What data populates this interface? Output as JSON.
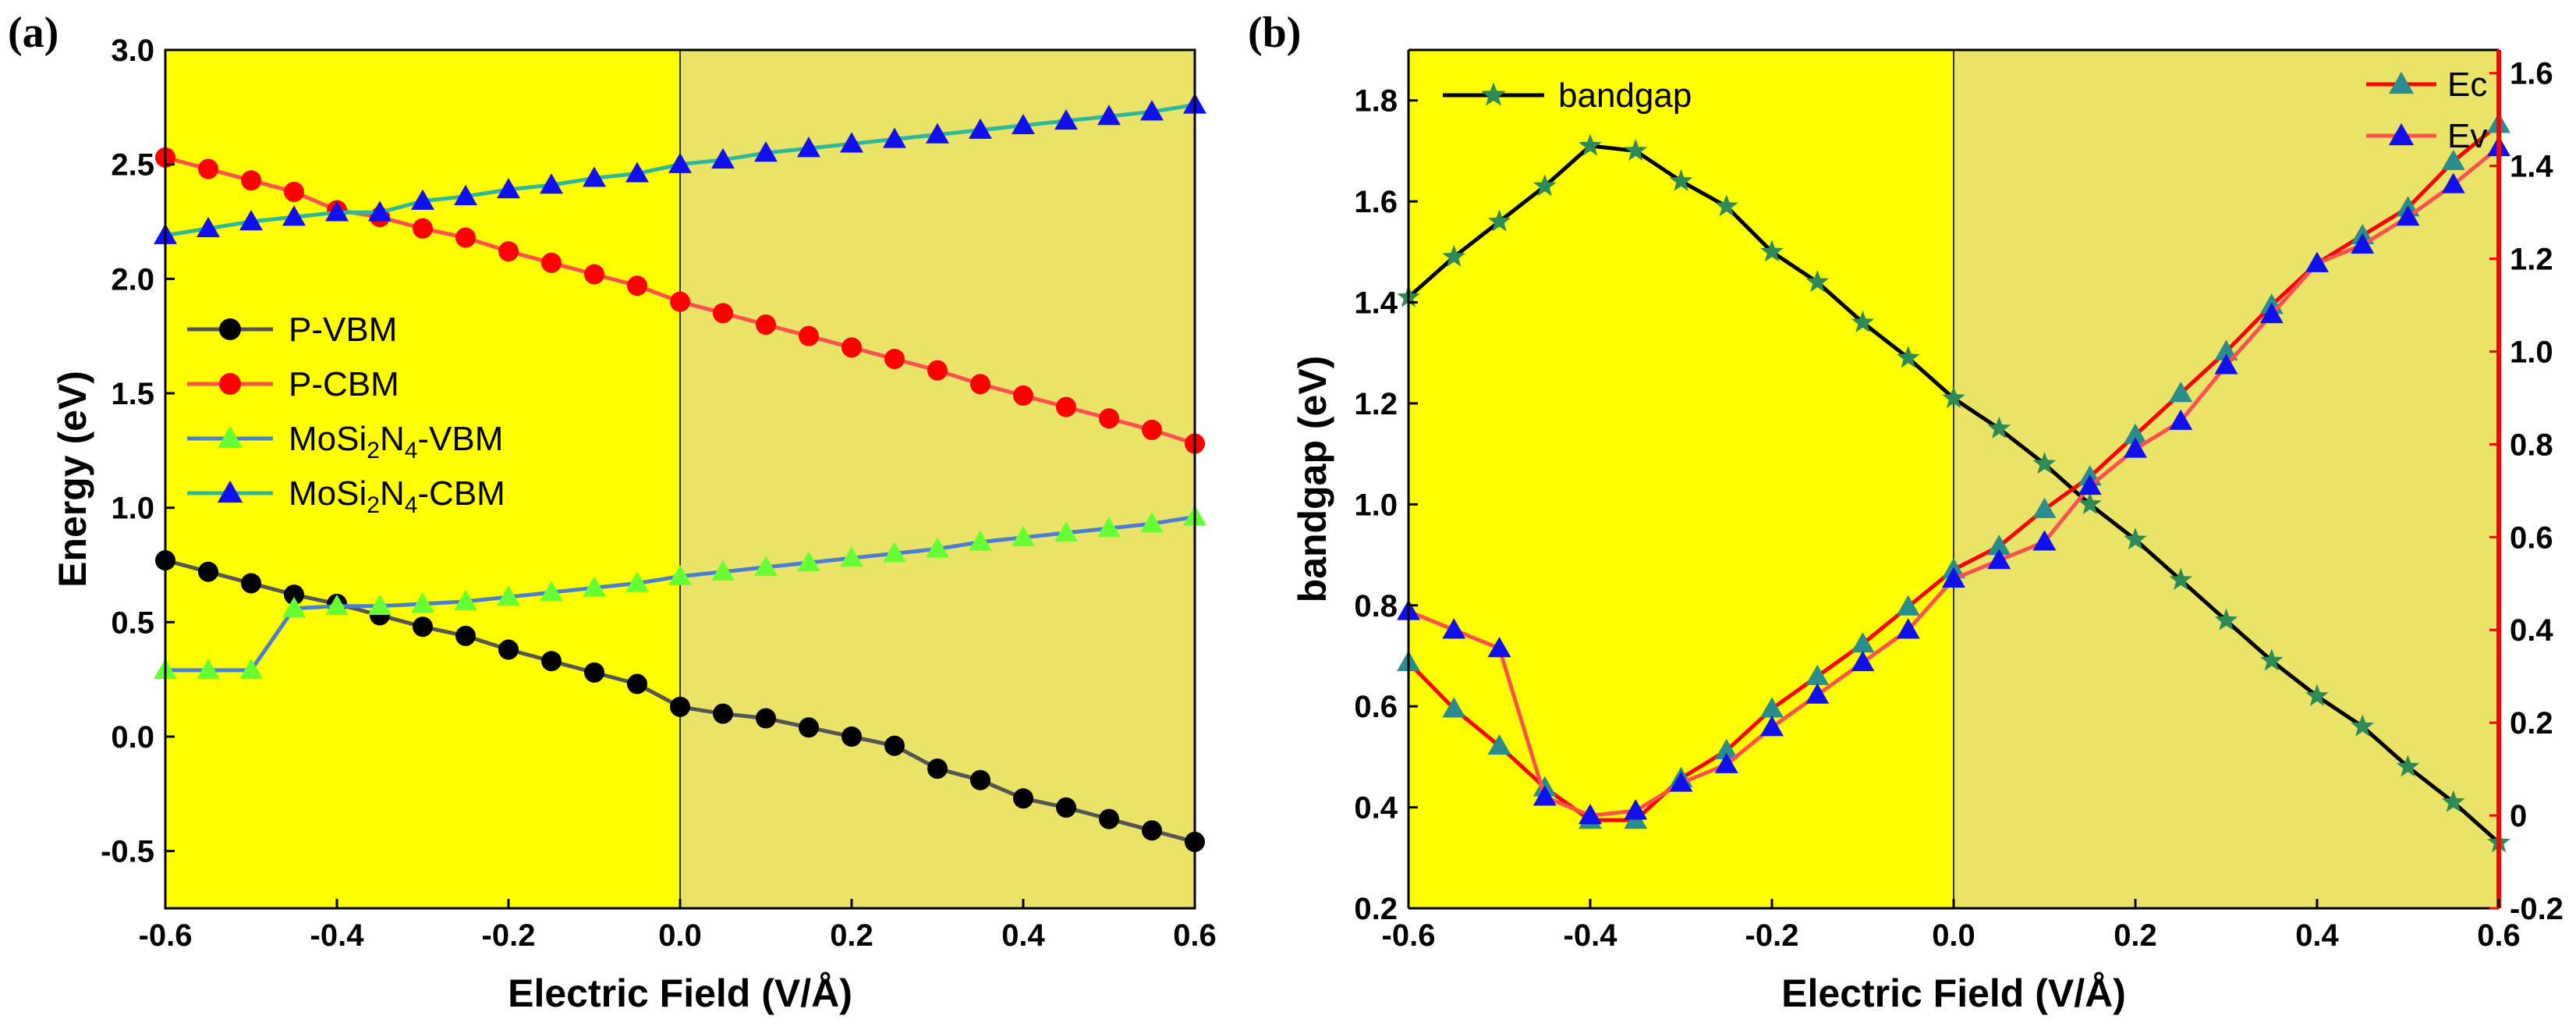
{
  "chart_data": [
    {
      "panel": "(a)",
      "type": "line",
      "xlabel": "Electric Field (V/Å)",
      "ylabel": "Energy (eV)",
      "xlim": [
        -0.6,
        0.6
      ],
      "ylim": [
        -0.75,
        3.0
      ],
      "xticks": [
        -0.6,
        -0.4,
        -0.2,
        0.0,
        0.2,
        0.4,
        0.6
      ],
      "xtick_labels": [
        "-0.6",
        "-0.4",
        "-0.2",
        "0.0",
        "0.2",
        "0.4",
        "0.6"
      ],
      "yticks": [
        -0.5,
        0.0,
        0.5,
        1.0,
        1.5,
        2.0,
        2.5,
        3.0
      ],
      "ytick_labels": [
        "-0.5",
        "0.0",
        "0.5",
        "1.0",
        "1.5",
        "2.0",
        "2.5",
        "3.0"
      ],
      "background": {
        "negative_field": "#ffff00",
        "positive_field": "#e9e367",
        "divider_x": 0.0
      },
      "x": [
        -0.6,
        -0.55,
        -0.5,
        -0.45,
        -0.4,
        -0.35,
        -0.3,
        -0.25,
        -0.2,
        -0.15,
        -0.1,
        -0.05,
        0.0,
        0.05,
        0.1,
        0.15,
        0.2,
        0.25,
        0.3,
        0.35,
        0.4,
        0.45,
        0.5,
        0.55,
        0.6
      ],
      "legend": {
        "placement": "middle-left"
      },
      "series": [
        {
          "name": "P-VBM",
          "legend_main": "P-VBM",
          "legend_rest": [],
          "marker": "circle",
          "line_color": "#555555",
          "marker_color": "#000000",
          "values": [
            0.77,
            0.72,
            0.67,
            0.62,
            0.58,
            0.53,
            0.48,
            0.44,
            0.38,
            0.33,
            0.28,
            0.23,
            0.13,
            0.1,
            0.08,
            0.04,
            0.0,
            -0.04,
            -0.14,
            -0.19,
            -0.27,
            -0.31,
            -0.36,
            -0.41,
            -0.46
          ]
        },
        {
          "name": "P-CBM",
          "legend_main": "P-CBM",
          "legend_rest": [],
          "marker": "circle",
          "line_color": "#ff5050",
          "marker_color": "#ff0000",
          "values": [
            2.53,
            2.48,
            2.43,
            2.38,
            2.3,
            2.27,
            2.22,
            2.18,
            2.12,
            2.07,
            2.02,
            1.97,
            1.9,
            1.85,
            1.8,
            1.75,
            1.7,
            1.65,
            1.6,
            1.54,
            1.49,
            1.44,
            1.39,
            1.34,
            1.28
          ]
        },
        {
          "name": "MoSi2N4-VBM",
          "legend_main": "MoSi",
          "legend_rest": [
            {
              "text": "2",
              "sub": true
            },
            {
              "text": "N",
              "sub": false
            },
            {
              "text": "4",
              "sub": true
            },
            {
              "text": "-VBM",
              "sub": false
            }
          ],
          "marker": "triangle",
          "line_color": "#4a7fd4",
          "marker_color": "#66ff33",
          "values": [
            0.29,
            0.29,
            0.29,
            0.56,
            0.57,
            0.57,
            0.58,
            0.59,
            0.61,
            0.63,
            0.65,
            0.67,
            0.7,
            0.72,
            0.74,
            0.76,
            0.78,
            0.8,
            0.82,
            0.85,
            0.87,
            0.89,
            0.91,
            0.93,
            0.96
          ]
        },
        {
          "name": "MoSi2N4-CBM",
          "legend_main": "MoSi",
          "legend_rest": [
            {
              "text": "2",
              "sub": true
            },
            {
              "text": "N",
              "sub": false
            },
            {
              "text": "4",
              "sub": true
            },
            {
              "text": "-CBM",
              "sub": false
            }
          ],
          "marker": "triangle",
          "line_color": "#2db89a",
          "marker_color": "#1010ee",
          "values": [
            2.19,
            2.22,
            2.25,
            2.27,
            2.29,
            2.29,
            2.34,
            2.36,
            2.39,
            2.41,
            2.44,
            2.46,
            2.5,
            2.52,
            2.55,
            2.57,
            2.59,
            2.61,
            2.63,
            2.65,
            2.67,
            2.69,
            2.71,
            2.73,
            2.76
          ]
        }
      ]
    },
    {
      "panel": "(b)",
      "type": "line",
      "xlabel": "Electric Field (V/Å)",
      "ylabel": "bandgap (eV)",
      "xlim": [
        -0.6,
        0.6
      ],
      "ylim": [
        0.2,
        1.9
      ],
      "y2lim": [
        -0.2,
        1.65
      ],
      "xticks": [
        -0.6,
        -0.4,
        -0.2,
        0.0,
        0.2,
        0.4,
        0.6
      ],
      "xtick_labels": [
        "-0.6",
        "-0.4",
        "-0.2",
        "0.0",
        "0.2",
        "0.4",
        "0.6"
      ],
      "yticks": [
        0.2,
        0.4,
        0.6,
        0.8,
        1.0,
        1.2,
        1.4,
        1.6,
        1.8
      ],
      "ytick_labels": [
        "0.2",
        "0.4",
        "0.6",
        "0.8",
        "1.0",
        "1.2",
        "1.4",
        "1.6",
        "1.8"
      ],
      "y2ticks": [
        -0.2,
        0.0,
        0.2,
        0.4,
        0.6,
        0.8,
        1.0,
        1.2,
        1.4,
        1.6
      ],
      "y2tick_labels": [
        "-0.2",
        "0",
        "0.2",
        "0.4",
        "0.6",
        "0.8",
        "1.0",
        "1.2",
        "1.4",
        "1.6"
      ],
      "background": {
        "negative_field": "#ffff00",
        "positive_field": "#e9e367",
        "divider_x": 0.0
      },
      "x": [
        -0.6,
        -0.55,
        -0.5,
        -0.45,
        -0.4,
        -0.35,
        -0.3,
        -0.25,
        -0.2,
        -0.15,
        -0.1,
        -0.05,
        0.0,
        0.05,
        0.1,
        0.15,
        0.2,
        0.25,
        0.3,
        0.35,
        0.4,
        0.45,
        0.5,
        0.55,
        0.6
      ],
      "legends": [
        {
          "placement": "top-left",
          "entries": [
            "bandgap"
          ]
        },
        {
          "placement": "top-right",
          "entries": [
            "Ec",
            "Ev"
          ]
        }
      ],
      "series": [
        {
          "name": "bandgap",
          "axis": "left",
          "marker": "star",
          "line_color": "#000000",
          "marker_color": "#2e8b57",
          "values": [
            1.41,
            1.49,
            1.56,
            1.63,
            1.71,
            1.7,
            1.64,
            1.59,
            1.5,
            1.44,
            1.36,
            1.29,
            1.21,
            1.15,
            1.08,
            1.0,
            0.93,
            0.85,
            0.77,
            0.69,
            0.62,
            0.56,
            0.48,
            0.41,
            0.33
          ]
        },
        {
          "name": "Ec",
          "axis": "right",
          "marker": "triangle",
          "line_color": "#ff0000",
          "marker_color": "#2a8c8c",
          "values": [
            0.33,
            0.23,
            0.15,
            0.06,
            -0.01,
            -0.01,
            0.08,
            0.14,
            0.23,
            0.3,
            0.37,
            0.45,
            0.53,
            0.58,
            0.66,
            0.73,
            0.82,
            0.91,
            1.0,
            1.1,
            1.19,
            1.25,
            1.31,
            1.41,
            1.49
          ]
        },
        {
          "name": "Ev",
          "axis": "right",
          "marker": "triangle",
          "line_color": "#ff5050",
          "marker_color": "#1010ee",
          "values": [
            0.44,
            0.4,
            0.36,
            0.04,
            0.0,
            0.01,
            0.07,
            0.11,
            0.19,
            0.26,
            0.33,
            0.4,
            0.51,
            0.55,
            0.59,
            0.71,
            0.79,
            0.85,
            0.97,
            1.08,
            1.19,
            1.23,
            1.29,
            1.36,
            1.44
          ]
        }
      ]
    }
  ]
}
